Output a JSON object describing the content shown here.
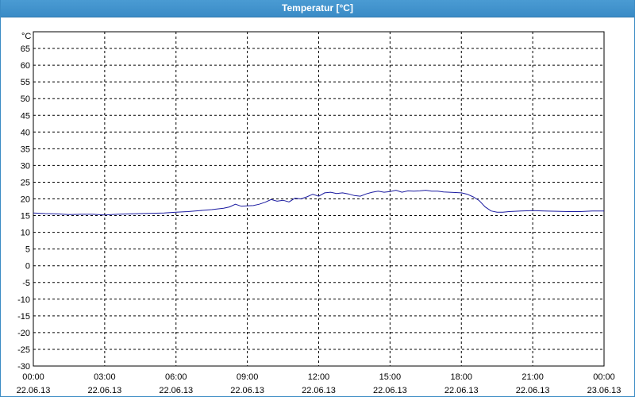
{
  "window": {
    "title": "Temperatur [°C]"
  },
  "colors": {
    "titlebar": "#3a8bc6",
    "line": "#1a1aa0",
    "grid": "#000000"
  },
  "chart_data": {
    "type": "line",
    "title": "Temperatur [°C]",
    "ylabel": "°C",
    "xlabel": "",
    "ylim": [
      -30,
      70
    ],
    "yticks": [
      65,
      60,
      55,
      50,
      45,
      40,
      35,
      30,
      25,
      20,
      15,
      10,
      5,
      0,
      -5,
      -10,
      -15,
      -20,
      -25,
      -30
    ],
    "xlim": [
      "22.06.13 00:00",
      "23.06.13 00:00"
    ],
    "xticks": [
      {
        "time": "00:00",
        "date": "22.06.13"
      },
      {
        "time": "03:00",
        "date": "22.06.13"
      },
      {
        "time": "06:00",
        "date": "22.06.13"
      },
      {
        "time": "09:00",
        "date": "22.06.13"
      },
      {
        "time": "12:00",
        "date": "22.06.13"
      },
      {
        "time": "15:00",
        "date": "22.06.13"
      },
      {
        "time": "18:00",
        "date": "22.06.13"
      },
      {
        "time": "21:00",
        "date": "22.06.13"
      },
      {
        "time": "00:00",
        "date": "23.06.13"
      }
    ],
    "grid": true,
    "series": [
      {
        "x": [
          "00:00",
          "00:30",
          "01:00",
          "01:30",
          "02:00",
          "02:30",
          "03:00",
          "03:30",
          "04:00",
          "04:30",
          "05:00",
          "05:30",
          "06:00",
          "06:30",
          "07:00",
          "07:30",
          "08:00",
          "08:15",
          "08:30",
          "08:45",
          "09:00",
          "09:15",
          "09:30",
          "09:45",
          "10:00",
          "10:15",
          "10:30",
          "10:45",
          "11:00",
          "11:15",
          "11:30",
          "11:45",
          "12:00",
          "12:15",
          "12:30",
          "12:45",
          "13:00",
          "13:15",
          "13:30",
          "13:45",
          "14:00",
          "14:15",
          "14:30",
          "14:45",
          "15:00",
          "15:15",
          "15:30",
          "15:45",
          "16:00",
          "16:15",
          "16:30",
          "16:45",
          "17:00",
          "17:15",
          "17:30",
          "17:45",
          "18:00",
          "18:15",
          "18:30",
          "18:45",
          "19:00",
          "19:15",
          "19:30",
          "19:45",
          "20:00",
          "20:30",
          "21:00",
          "21:30",
          "22:00",
          "22:30",
          "23:00",
          "23:30",
          "00:00"
        ],
        "values": [
          15.8,
          15.6,
          15.5,
          15.3,
          15.4,
          15.4,
          15.2,
          15.4,
          15.5,
          15.6,
          15.7,
          15.8,
          16.0,
          16.2,
          16.5,
          16.8,
          17.2,
          17.6,
          18.4,
          17.8,
          17.9,
          18.0,
          18.4,
          19.0,
          19.8,
          19.3,
          19.6,
          19.1,
          20.2,
          20.0,
          20.6,
          21.4,
          20.8,
          21.8,
          22.0,
          21.6,
          21.8,
          21.5,
          21.0,
          20.8,
          21.5,
          22.0,
          22.3,
          22.0,
          22.2,
          22.6,
          22.0,
          22.4,
          22.3,
          22.4,
          22.6,
          22.3,
          22.3,
          22.1,
          22.0,
          21.9,
          21.8,
          21.4,
          20.6,
          19.5,
          17.6,
          16.4,
          16.0,
          16.0,
          16.2,
          16.4,
          16.5,
          16.4,
          16.3,
          16.2,
          16.2,
          16.4,
          16.4
        ]
      }
    ]
  }
}
